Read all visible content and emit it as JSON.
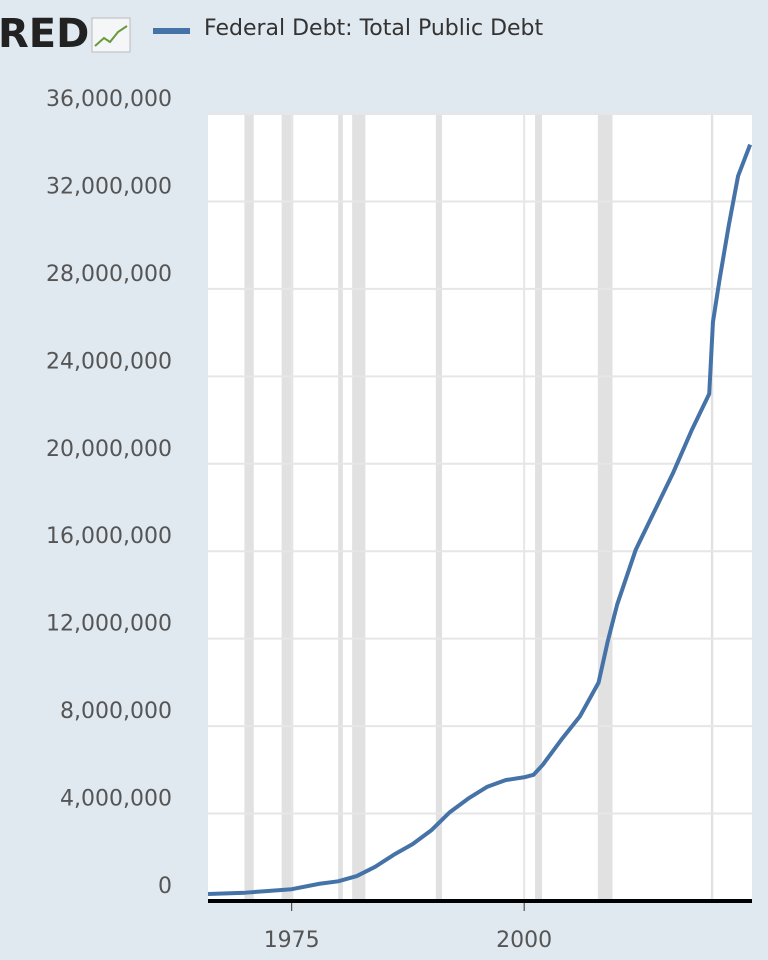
{
  "chart_data": {
    "type": "line",
    "logo": "RED",
    "xlim": [
      1966,
      2024.5
    ],
    "ylim": [
      0,
      36000000
    ],
    "xticks": [
      1975,
      2000
    ],
    "yticks": [
      {
        "value": 0,
        "label": "0"
      },
      {
        "value": 4000000,
        "label": "4,000,000"
      },
      {
        "value": 8000000,
        "label": "8,000,000"
      },
      {
        "value": 12000000,
        "label": "12,000,000"
      },
      {
        "value": 16000000,
        "label": "16,000,000"
      },
      {
        "value": 20000000,
        "label": "20,000,000"
      },
      {
        "value": 24000000,
        "label": "24,000,000"
      },
      {
        "value": 28000000,
        "label": "28,000,000"
      },
      {
        "value": 32000000,
        "label": "32,000,000"
      },
      {
        "value": 36000000,
        "label": "36,000,000"
      }
    ],
    "grid": true,
    "recessions": [
      [
        1969.92,
        1970.92
      ],
      [
        1973.92,
        1975.17
      ],
      [
        1980.0,
        1980.5
      ],
      [
        1981.5,
        1982.92
      ],
      [
        1990.5,
        1991.17
      ],
      [
        2001.17,
        2001.92
      ],
      [
        2007.92,
        2009.5
      ],
      [
        2020.08,
        2020.33
      ]
    ],
    "x": [
      1966,
      1970,
      1975,
      1978,
      1980,
      1982,
      1984,
      1986,
      1988,
      1990,
      1992,
      1994,
      1996,
      1998,
      2000,
      2001,
      2002,
      2004,
      2006,
      2008,
      2009,
      2010,
      2012,
      2014,
      2016,
      2018,
      2019.9,
      2020.3,
      2021,
      2022,
      2023,
      2024.3
    ],
    "series": [
      {
        "name": "Federal Debt: Total Public Debt",
        "color": "#4572a7",
        "values": [
          320000,
          380000,
          540000,
          790000,
          900000,
          1140000,
          1570000,
          2120000,
          2600000,
          3230000,
          4060000,
          4690000,
          5220000,
          5530000,
          5660000,
          5770000,
          6230000,
          7380000,
          8450000,
          9990000,
          11900000,
          13560000,
          16070000,
          17820000,
          19570000,
          21520000,
          23200000,
          26480000,
          28400000,
          30900000,
          33160000,
          34600000
        ]
      }
    ]
  }
}
